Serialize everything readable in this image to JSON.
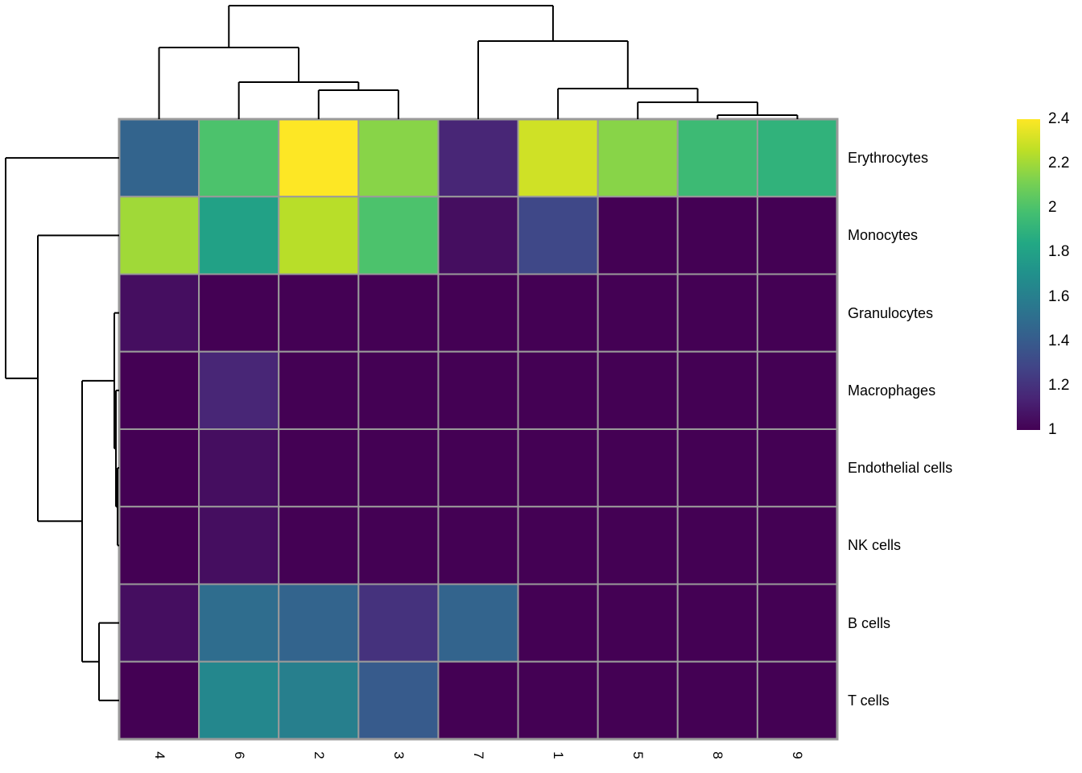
{
  "chart_data": {
    "type": "heatmap",
    "title": "",
    "colormap": "viridis",
    "vmin": 1,
    "vmax": 2.4,
    "grid_color": "#9a9a9a",
    "dendrogram_color": "#000000",
    "background_color": "#ffffff",
    "columns": [
      "4",
      "6",
      "2",
      "3",
      "7",
      "1",
      "5",
      "8",
      "9"
    ],
    "rows": [
      "Erythrocytes",
      "Monocytes",
      "Granulocytes",
      "Macrophages",
      "Endothelial cells",
      "NK cells",
      "B cells",
      "T cells"
    ],
    "values": [
      [
        1.45,
        2.0,
        2.4,
        2.15,
        1.15,
        2.3,
        2.15,
        1.95,
        1.9
      ],
      [
        2.2,
        1.8,
        2.25,
        2.0,
        1.05,
        1.3,
        1.0,
        1.0,
        1.0
      ],
      [
        1.05,
        1.0,
        1.0,
        1.0,
        1.0,
        1.0,
        1.0,
        1.0,
        1.0
      ],
      [
        1.0,
        1.15,
        1.0,
        1.0,
        1.0,
        1.0,
        1.0,
        1.0,
        1.0
      ],
      [
        1.0,
        1.05,
        1.0,
        1.0,
        1.0,
        1.0,
        1.0,
        1.0,
        1.0
      ],
      [
        1.0,
        1.05,
        1.0,
        1.0,
        1.0,
        1.0,
        1.0,
        1.0,
        1.0
      ],
      [
        1.05,
        1.5,
        1.45,
        1.2,
        1.45,
        1.0,
        1.0,
        1.0,
        1.0
      ],
      [
        1.0,
        1.65,
        1.6,
        1.4,
        1.0,
        1.0,
        1.0,
        1.0,
        1.0
      ]
    ],
    "legend_ticks": [
      "2.4",
      "2.2",
      "2",
      "1.8",
      "1.6",
      "1.4",
      "1.2",
      "1"
    ],
    "col_dendrogram": {
      "d": 141,
      "children": [
        {
          "d": 89,
          "children": [
            {
              "leaf": "4"
            },
            {
              "d": 46,
              "children": [
                {
                  "leaf": "6"
                },
                {
                  "d": 36,
                  "children": [
                    {
                      "leaf": "2"
                    },
                    {
                      "leaf": "3"
                    }
                  ]
                }
              ]
            }
          ]
        },
        {
          "d": 97,
          "children": [
            {
              "leaf": "7"
            },
            {
              "d": 38,
              "children": [
                {
                  "leaf": "1"
                },
                {
                  "d": 21,
                  "children": [
                    {
                      "leaf": "5"
                    },
                    {
                      "d": 5,
                      "children": [
                        {
                          "leaf": "8"
                        },
                        {
                          "leaf": "9"
                        }
                      ]
                    }
                  ]
                }
              ]
            }
          ]
        }
      ]
    },
    "row_dendrogram": {
      "d": 141,
      "children": [
        {
          "leaf": "Erythrocytes"
        },
        {
          "d": 101,
          "children": [
            {
              "leaf": "Monocytes"
            },
            {
              "d": 46,
              "children": [
                {
                  "d": 6,
                  "children": [
                    {
                      "leaf": "Granulocytes"
                    },
                    {
                      "d": 4,
                      "children": [
                        {
                          "leaf": "Macrophages"
                        },
                        {
                          "d": 2,
                          "children": [
                            {
                              "leaf": "Endothelial cells"
                            },
                            {
                              "leaf": "NK cells"
                            }
                          ]
                        }
                      ]
                    }
                  ]
                },
                {
                  "d": 25,
                  "children": [
                    {
                      "leaf": "B cells"
                    },
                    {
                      "leaf": "T cells"
                    }
                  ]
                }
              ]
            }
          ]
        }
      ]
    }
  }
}
